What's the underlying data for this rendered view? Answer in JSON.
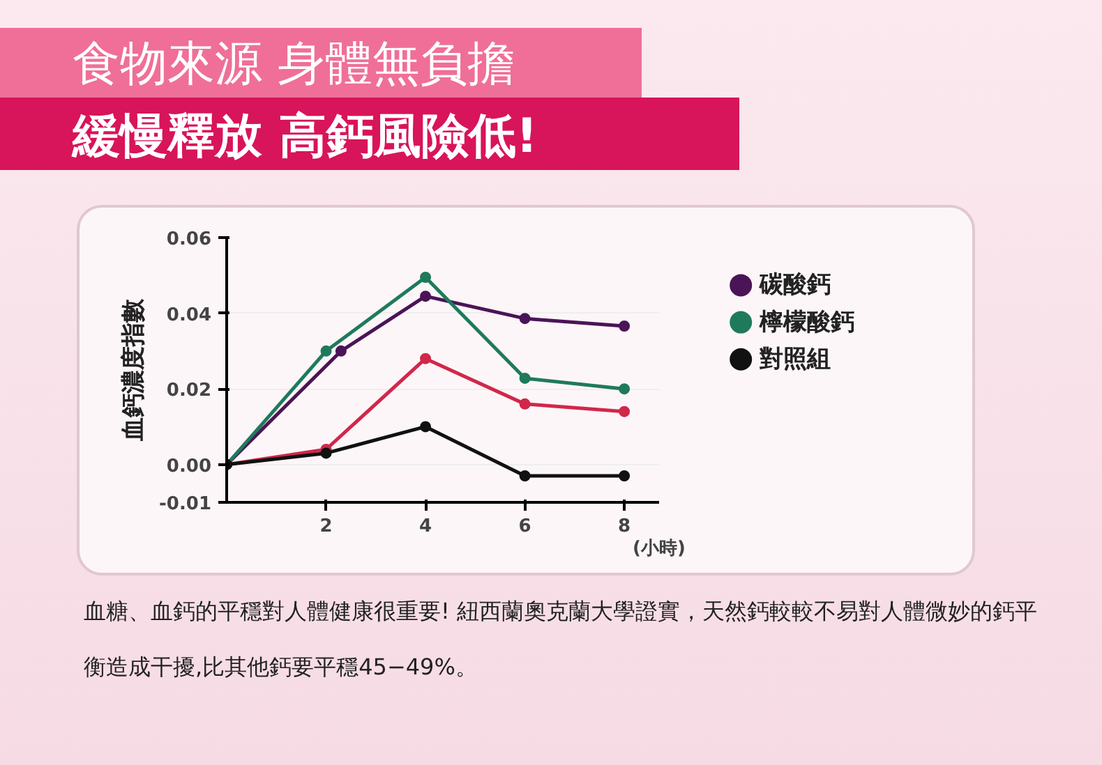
{
  "chart_data": {
    "type": "line",
    "title": "食物來源 身體無負擔",
    "subtitle": "緩慢釋放 高鈣風險低!",
    "ylabel": "血鈣濃度指數",
    "xlabel": "(小時)",
    "xlim": [
      0,
      8.7
    ],
    "xticks": [
      2,
      4,
      6,
      8
    ],
    "ylim": [
      -0.01,
      0.06
    ],
    "yticks": [
      {
        "value": 0.06,
        "label": "0.06"
      },
      {
        "value": 0.04,
        "label": "0.04"
      },
      {
        "value": 0.02,
        "label": "0.02"
      },
      {
        "value": 0,
        "label": "0.00"
      },
      {
        "value": -0.01,
        "label": "-0.01"
      }
    ],
    "grid": "y",
    "legend": "right",
    "marker": "circle",
    "line_style": "solid",
    "series": [
      {
        "name": "碳酸鈣",
        "color": "#4b1457",
        "x": [
          0,
          2.3,
          4,
          6,
          8
        ],
        "values": [
          0,
          0.03,
          0.0445,
          0.0386,
          0.0366
        ]
      },
      {
        "name": "檸檬酸鈣",
        "color": "#1f7a5c",
        "x": [
          0,
          2,
          4,
          6,
          8
        ],
        "values": [
          0,
          0.03,
          0.0495,
          0.0228,
          0.02
        ]
      },
      {
        "color": "#d0284a",
        "x": [
          0,
          2,
          4,
          6,
          8
        ],
        "values": [
          0,
          0.004,
          0.028,
          0.016,
          0.014
        ]
      },
      {
        "name": "對照組",
        "color": "#111111",
        "x": [
          0,
          2,
          4,
          6,
          8
        ],
        "values": [
          0,
          0.003,
          0.01,
          -0.003,
          -0.003
        ]
      }
    ],
    "annotations": [
      "血糖、血鈣的平穩對人體健康很重要! 紐西蘭奧克蘭大學證實，天然鈣較較不易對人體微妙的鈣平衡造成干擾,比其他鈣要平穩45−49%。"
    ]
  }
}
